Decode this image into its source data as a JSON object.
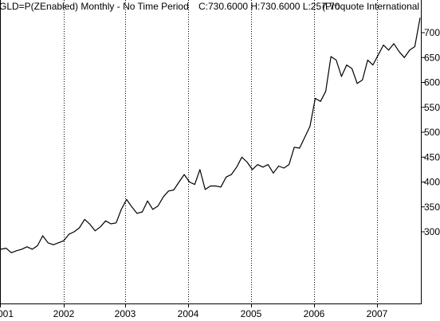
{
  "header": {
    "title": "GLD=P(ZEnabled) Monthly - No Time Period",
    "ohlc": "C:730.6000 H:730.6000 L:257.70",
    "source": "(Proquote International"
  },
  "chart_data": {
    "type": "line",
    "x_ticks": [
      "001",
      "2002",
      "2003",
      "2004",
      "2005",
      "2006",
      "2007"
    ],
    "y_ticks": [
      "300",
      "350",
      "400",
      "450",
      "500",
      "550",
      "600",
      "650",
      "700"
    ],
    "ylim": [
      250,
      740
    ],
    "grid": "vertical dotted at each year",
    "series": [
      {
        "values": [
          265,
          267,
          258,
          262,
          265,
          270,
          265,
          272,
          292,
          278,
          274,
          278,
          282,
          295,
          300,
          308,
          325,
          315,
          302,
          310,
          322,
          316,
          318,
          345,
          365,
          350,
          337,
          340,
          362,
          345,
          352,
          370,
          382,
          384,
          400,
          415,
          400,
          395,
          425,
          385,
          392,
          392,
          390,
          410,
          415,
          430,
          450,
          440,
          425,
          435,
          430,
          435,
          418,
          432,
          428,
          435,
          470,
          468,
          490,
          512,
          568,
          562,
          582,
          652,
          645,
          612,
          635,
          628,
          598,
          605,
          645,
          635,
          655,
          675,
          665,
          678,
          662,
          650,
          665,
          672,
          730
        ]
      }
    ]
  }
}
